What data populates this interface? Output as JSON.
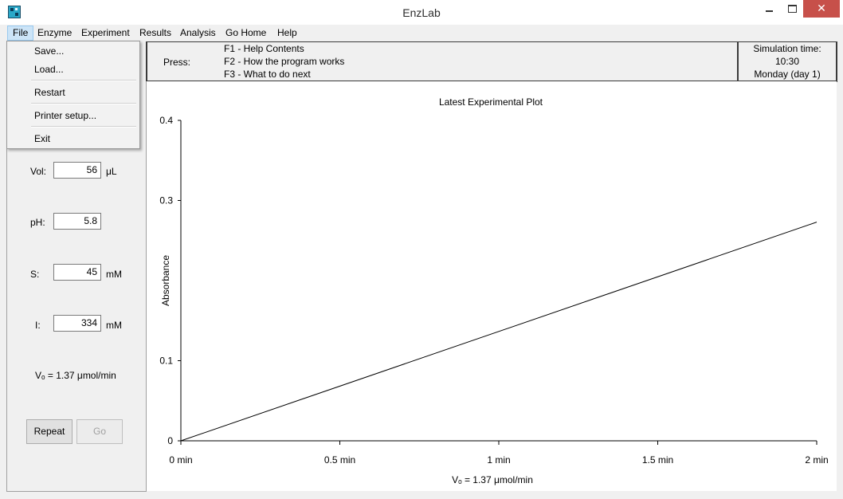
{
  "window": {
    "title": "EnzLab",
    "close_glyph": "✕"
  },
  "menubar": {
    "items": [
      "File",
      "Enzyme",
      "Experiment",
      "Results",
      "Analysis",
      "Go Home",
      "Help"
    ]
  },
  "file_menu": {
    "items": [
      "Save...",
      "Load...",
      "Restart",
      "Printer setup...",
      "Exit"
    ]
  },
  "help_panel": {
    "press_label": "Press:",
    "lines": [
      "F1 - Help Contents",
      "F2 - How the program works",
      "F3 - What to do next"
    ]
  },
  "simulation": {
    "label": "Simulation time:",
    "time": "10:30",
    "day": "Monday (day 1)"
  },
  "params": {
    "vol": {
      "label": "Vol:",
      "value": "56",
      "unit": "μL"
    },
    "ph": {
      "label": "pH:",
      "value": "5.8"
    },
    "s": {
      "label": "S:",
      "value": "45",
      "unit": "mM"
    },
    "i": {
      "label": "I:",
      "value": "334",
      "unit": "mM"
    },
    "vo_text": "Vₒ = 1.37 μmol/min"
  },
  "buttons": {
    "repeat": "Repeat",
    "go": "Go"
  },
  "chart_data": {
    "type": "line",
    "title": "Latest Experimental Plot",
    "xlabel": "Vₒ = 1.37 μmol/min",
    "ylabel": "Absorbance",
    "x_ticks": [
      {
        "value": 0,
        "label": "0 min"
      },
      {
        "value": 0.5,
        "label": "0.5 min"
      },
      {
        "value": 1,
        "label": "1 min"
      },
      {
        "value": 1.5,
        "label": "1.5 min"
      },
      {
        "value": 2,
        "label": "2 min"
      }
    ],
    "y_ticks": [
      {
        "value": 0,
        "label": "0"
      },
      {
        "value": 0.1,
        "label": "0.1"
      },
      {
        "value": 0.3,
        "label": "0.3"
      },
      {
        "value": 0.4,
        "label": "0.4"
      }
    ],
    "xlim": [
      0,
      2
    ],
    "ylim": [
      0,
      0.4
    ],
    "series": [
      {
        "x": [
          0,
          2
        ],
        "y": [
          0,
          0.273
        ]
      }
    ],
    "grid": false
  }
}
